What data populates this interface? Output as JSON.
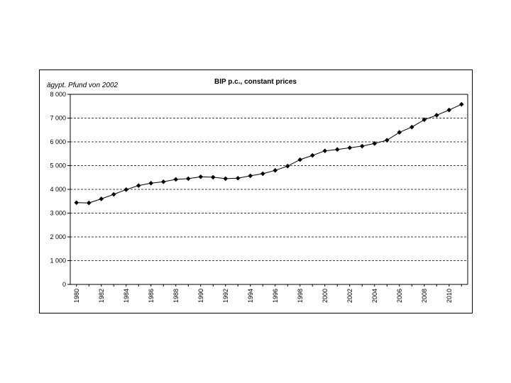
{
  "chart_data": {
    "type": "line",
    "title": "BIP p.c., constant prices",
    "ylabel": "ägypt. Pfund von 2002",
    "xlabel": "",
    "ylim": [
      0,
      8000
    ],
    "yticks": [
      0,
      1000,
      2000,
      3000,
      4000,
      5000,
      6000,
      7000,
      8000
    ],
    "ytick_labels": [
      "0",
      "1 000",
      "2 000",
      "3 000",
      "4 000",
      "5 000",
      "6 000",
      "7 000",
      "8 000"
    ],
    "xlim": [
      1980,
      2011
    ],
    "xtick_labels": [
      "1980",
      "1982",
      "1984",
      "1986",
      "1988",
      "1990",
      "1992",
      "1994",
      "1996",
      "1998",
      "2000",
      "2002",
      "2004",
      "2006",
      "2008",
      "2010"
    ],
    "grid": "horizontal-dashed",
    "legend": "none",
    "marker": "diamond",
    "line_color": "#000000",
    "x": [
      1980,
      1981,
      1982,
      1983,
      1984,
      1985,
      1986,
      1987,
      1988,
      1989,
      1990,
      1991,
      1992,
      1993,
      1994,
      1995,
      1996,
      1997,
      1998,
      1999,
      2000,
      2001,
      2002,
      2003,
      2004,
      2005,
      2006,
      2007,
      2008,
      2009,
      2010,
      2011
    ],
    "values": [
      3440,
      3430,
      3600,
      3790,
      3990,
      4160,
      4260,
      4320,
      4420,
      4450,
      4530,
      4510,
      4450,
      4470,
      4570,
      4660,
      4800,
      4980,
      5250,
      5430,
      5620,
      5680,
      5750,
      5820,
      5930,
      6070,
      6400,
      6620,
      6930,
      7120,
      7340,
      7580
    ]
  }
}
